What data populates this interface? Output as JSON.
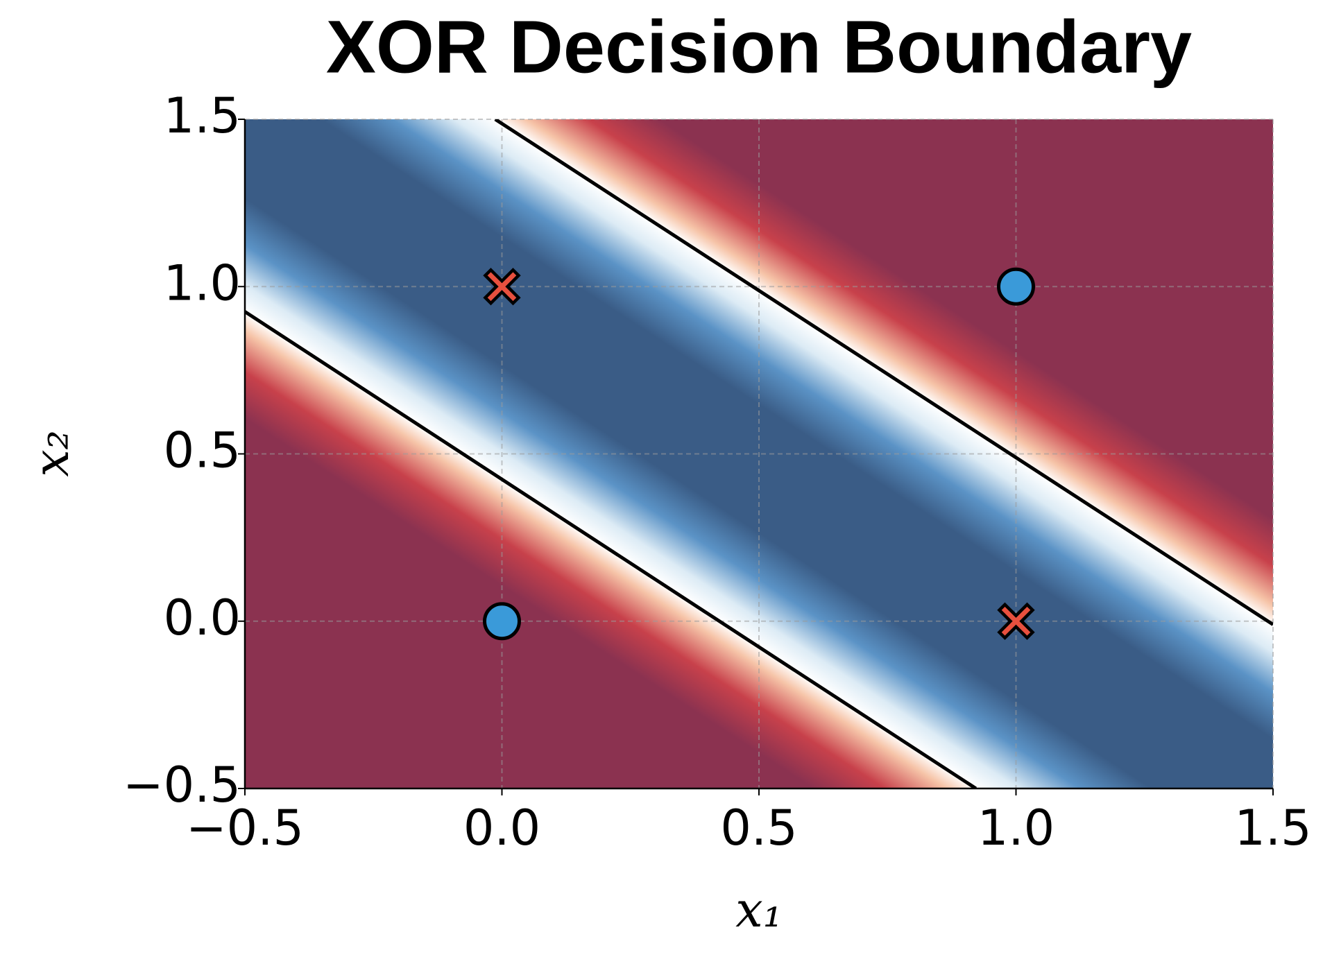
{
  "chart_data": {
    "type": "scatter",
    "title": "XOR Decision Boundary",
    "x_label": "x₁",
    "y_label": "x₂",
    "xlim": [
      -0.5,
      1.5
    ],
    "ylim": [
      -0.5,
      1.5
    ],
    "xticks": [
      {
        "value": -0.5,
        "label": "−0.5"
      },
      {
        "value": 0,
        "label": "0.0"
      },
      0.5,
      {
        "value": 1,
        "label": "1.0"
      },
      1.5
    ],
    "yticks": [
      {
        "value": -0.5,
        "label": "−0.5"
      },
      {
        "value": 0,
        "label": "0.0"
      },
      0.5,
      {
        "value": 1,
        "label": "1.0"
      },
      1.5
    ],
    "grid": true,
    "region_colors": {
      "inside": "#3a5c86",
      "outside": "#8b3250"
    },
    "boundary_color": "#000000",
    "boundaries": [
      {
        "x": [
          -0.5,
          0.922
        ],
        "y": [
          0.925,
          -0.5
        ]
      },
      {
        "x": [
          -0.013,
          1.5
        ],
        "y": [
          1.5,
          -0.01
        ]
      }
    ],
    "series": [
      {
        "marker": "circle",
        "color": "#3a9ad9",
        "x": [
          0,
          1
        ],
        "y": [
          0,
          1
        ]
      },
      {
        "marker": "x",
        "color": "#e8503e",
        "x": [
          0,
          1
        ],
        "y": [
          1,
          0
        ]
      }
    ]
  }
}
